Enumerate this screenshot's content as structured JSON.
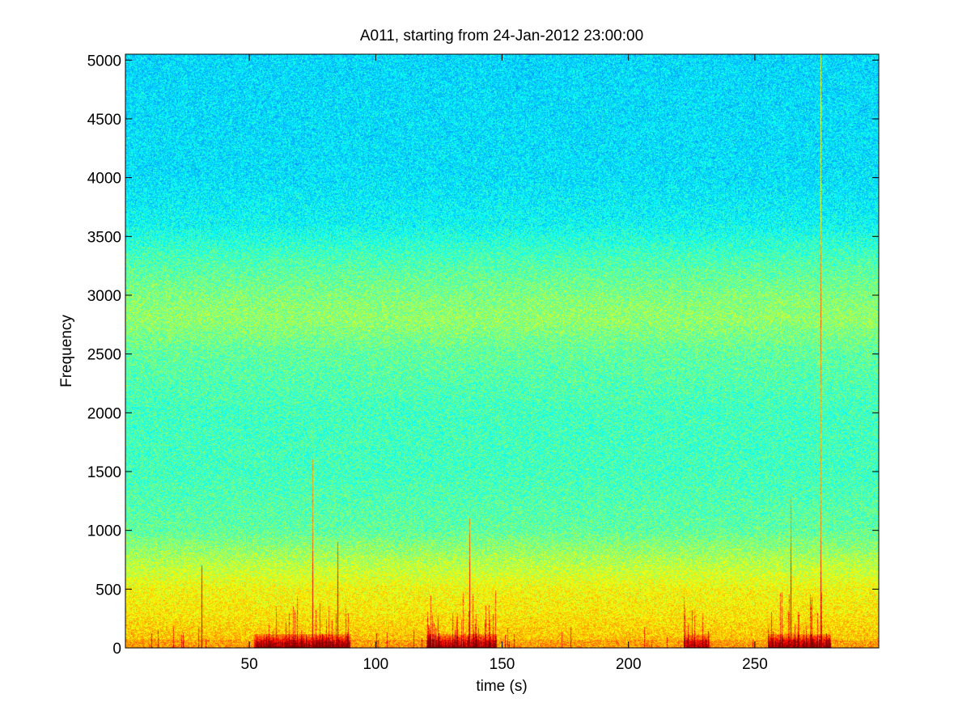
{
  "chart_data": {
    "type": "heatmap",
    "title": "A011, starting from 24-Jan-2012 23:00:00",
    "xlabel": "time (s)",
    "ylabel": "Frequency",
    "xlim": [
      1,
      299
    ],
    "ylim": [
      0,
      5050
    ],
    "x_ticks": [
      50,
      100,
      150,
      200,
      250
    ],
    "y_ticks": [
      0,
      500,
      1000,
      1500,
      2000,
      2500,
      3000,
      3500,
      4000,
      4500,
      5000
    ],
    "grid": false,
    "colormap": "jet",
    "background_profile": [
      {
        "freq": 0,
        "level": 0.7
      },
      {
        "freq": 100,
        "level": 0.68
      },
      {
        "freq": 300,
        "level": 0.64
      },
      {
        "freq": 500,
        "level": 0.62
      },
      {
        "freq": 700,
        "level": 0.56
      },
      {
        "freq": 1000,
        "level": 0.47
      },
      {
        "freq": 1500,
        "level": 0.44
      },
      {
        "freq": 2000,
        "level": 0.44
      },
      {
        "freq": 2500,
        "level": 0.47
      },
      {
        "freq": 2800,
        "level": 0.52
      },
      {
        "freq": 3000,
        "level": 0.5
      },
      {
        "freq": 3300,
        "level": 0.45
      },
      {
        "freq": 3600,
        "level": 0.38
      },
      {
        "freq": 4000,
        "level": 0.35
      },
      {
        "freq": 5050,
        "level": 0.34
      }
    ],
    "low_frequency_bursts": [
      {
        "t_start": 52,
        "t_end": 90,
        "intensity": 0.95
      },
      {
        "t_start": 120,
        "t_end": 148,
        "intensity": 0.85
      },
      {
        "t_start": 222,
        "t_end": 232,
        "intensity": 0.7
      },
      {
        "t_start": 255,
        "t_end": 280,
        "intensity": 0.95
      }
    ],
    "transients": [
      {
        "t": 31,
        "f_max": 700
      },
      {
        "t": 75,
        "f_max": 1600
      },
      {
        "t": 85,
        "f_max": 900
      },
      {
        "t": 137,
        "f_max": 1100
      },
      {
        "t": 264,
        "f_max": 1300
      },
      {
        "t": 276,
        "f_max": 5050
      }
    ]
  }
}
